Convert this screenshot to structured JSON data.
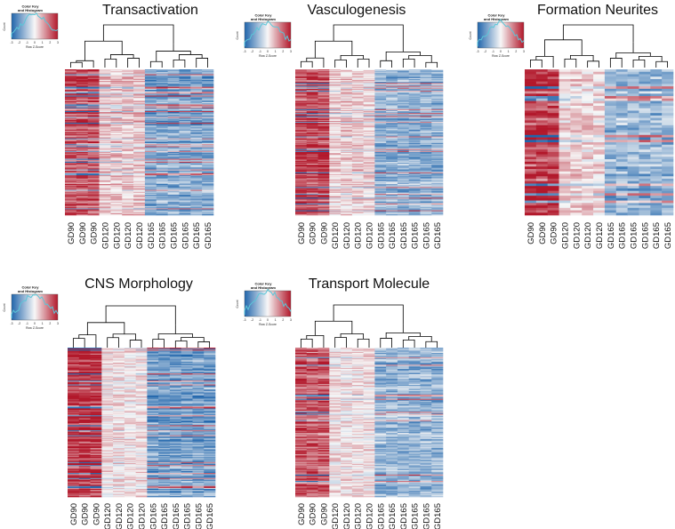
{
  "chart_data": [
    {
      "type": "heatmap",
      "title": "Transactivation",
      "columns": [
        "GD90",
        "GD90",
        "GD90",
        "GD120",
        "GD120",
        "GD120",
        "GD120",
        "GD165",
        "GD165",
        "GD165",
        "GD165",
        "GD165",
        "GD165"
      ],
      "group_pattern": [
        0.75,
        0.25,
        -0.55
      ],
      "color_key": {
        "title": "Color Key",
        "subtitle": "and Histogram",
        "xlabel": "Row Z-Score",
        "ylabel": "Count",
        "ticks": [
          "-3",
          "-2",
          "-1",
          "0",
          "1",
          "2",
          "3"
        ],
        "range": [
          -3,
          3
        ]
      }
    },
    {
      "type": "heatmap",
      "title": "Vasculogenesis",
      "columns": [
        "GD90",
        "GD90",
        "GD90",
        "GD120",
        "GD120",
        "GD120",
        "GD120",
        "GD165",
        "GD165",
        "GD165",
        "GD165",
        "GD165",
        "GD165"
      ],
      "group_pattern": [
        0.8,
        0.2,
        -0.5
      ],
      "color_key": {
        "title": "Color Key",
        "subtitle": "and Histogram",
        "xlabel": "Row Z-Score",
        "ylabel": "Count",
        "ticks": [
          "-3",
          "-2",
          "-1",
          "0",
          "1",
          "2",
          "3"
        ],
        "range": [
          -3,
          3
        ]
      }
    },
    {
      "type": "heatmap",
      "title": "Formation Neurites",
      "columns": [
        "GD90",
        "GD90",
        "GD90",
        "GD120",
        "GD120",
        "GD120",
        "GD120",
        "GD165",
        "GD165",
        "GD165",
        "GD165",
        "GD165",
        "GD165"
      ],
      "group_pattern": [
        0.85,
        0.15,
        -0.45
      ],
      "color_key": {
        "title": "Color Key",
        "subtitle": "and Histogram",
        "xlabel": "Row Z-Score",
        "ylabel": "Count",
        "ticks": [
          "-3",
          "-2",
          "-1",
          "0",
          "1",
          "2",
          "3"
        ],
        "range": [
          -3,
          3
        ]
      }
    },
    {
      "type": "heatmap",
      "title": "CNS Morphology",
      "columns": [
        "GD90",
        "GD90",
        "GD90",
        "GD120",
        "GD120",
        "GD120",
        "GD120",
        "GD165",
        "GD165",
        "GD165",
        "GD165",
        "GD165",
        "GD165"
      ],
      "group_pattern": [
        0.9,
        0.1,
        -0.6
      ],
      "color_key": {
        "title": "Color Key",
        "subtitle": "and Histogram",
        "xlabel": "Row Z-Score",
        "ylabel": "Count",
        "ticks": [
          "-3",
          "-2",
          "-1",
          "0",
          "1",
          "2",
          "3"
        ],
        "range": [
          -3,
          3
        ]
      }
    },
    {
      "type": "heatmap",
      "title": "Transport Molecule",
      "columns": [
        "GD90",
        "GD90",
        "GD90",
        "GD120",
        "GD120",
        "GD120",
        "GD120",
        "GD165",
        "GD165",
        "GD165",
        "GD165",
        "GD165",
        "GD165"
      ],
      "group_pattern": [
        0.7,
        0.1,
        -0.45
      ],
      "color_key": {
        "title": "Color Key",
        "subtitle": "and Histogram",
        "xlabel": "Row Z-Score",
        "ylabel": "Count",
        "ticks": [
          "-3",
          "-2",
          "-1",
          "0",
          "1",
          "2",
          "3"
        ],
        "range": [
          -3,
          3
        ]
      }
    }
  ],
  "colors": {
    "low": "#2166ac",
    "mid": "#f7f7f7",
    "high": "#b2182b",
    "histogram": "#5bc6d8",
    "line": "#000000"
  }
}
